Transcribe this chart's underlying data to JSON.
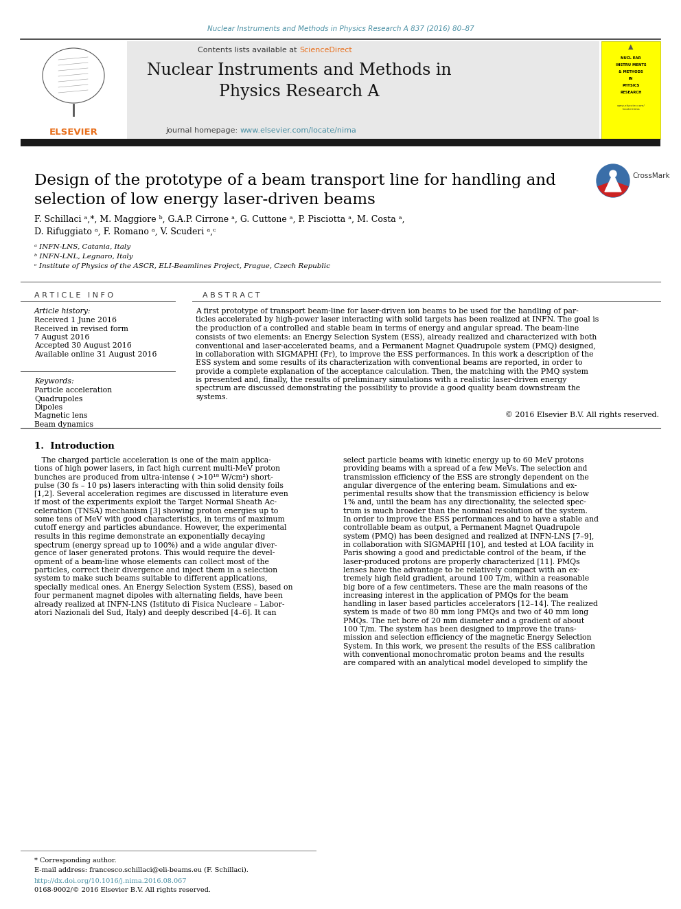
{
  "journal_ref": "Nuclear Instruments and Methods in Physics Research A 837 (2016) 80–87",
  "journal_ref_color": "#4a90a4",
  "header_bg": "#e8e8e8",
  "contents_text": "Contents lists available at ",
  "sciencedirect_text": "ScienceDirect",
  "sciencedirect_color": "#e86e1a",
  "journal_title": "Nuclear Instruments and Methods in\nPhysics Research A",
  "journal_homepage_text": "journal homepage: ",
  "journal_url": "www.elsevier.com/locate/nima",
  "journal_url_color": "#4a90a4",
  "thick_bar_color": "#1a1a1a",
  "paper_title": "Design of the prototype of a beam transport line for handling and\nselection of low energy laser-driven beams",
  "authors_line1": "F. Schillaci ᵃ,*, M. Maggiore ᵇ, G.A.P. Cirrone ᵃ, G. Cuttone ᵃ, P. Pisciotta ᵃ, M. Costa ᵃ,",
  "authors_line2": "D. Rifuggiato ᵃ, F. Romano ᵃ, V. Scuderi ᵃ,ᶜ",
  "affiliations": [
    "ᵃ INFN-LNS, Catania, Italy",
    "ᵇ INFN-LNL, Legnaro, Italy",
    "ᶜ Institute of Physics of the ASCR, ELI-Beamlines Project, Prague, Czech Republic"
  ],
  "article_info_title": "A R T I C L E   I N F O",
  "article_history_label": "Article history:",
  "article_history": [
    "Received 1 June 2016",
    "Received in revised form",
    "7 August 2016",
    "Accepted 30 August 2016",
    "Available online 31 August 2016"
  ],
  "keywords_label": "Keywords:",
  "keywords": [
    "Particle acceleration",
    "Quadrupoles",
    "Dipoles",
    "Magnetic lens",
    "Beam dynamics"
  ],
  "abstract_title": "A B S T R A C T",
  "abstract_lines": [
    "A first prototype of transport beam-line for laser-driven ion beams to be used for the handling of par-",
    "ticles accelerated by high-power laser interacting with solid targets has been realized at INFN. The goal is",
    "the production of a controlled and stable beam in terms of energy and angular spread. The beam-line",
    "consists of two elements: an Energy Selection System (ESS), already realized and characterized with both",
    "conventional and laser-accelerated beams, and a Permanent Magnet Quadrupole system (PMQ) designed,",
    "in collaboration with SIGMAPHI (Fr), to improve the ESS performances. In this work a description of the",
    "ESS system and some results of its characterization with conventional beams are reported, in order to",
    "provide a complete explanation of the acceptance calculation. Then, the matching with the PMQ system",
    "is presented and, finally, the results of preliminary simulations with a realistic laser-driven energy",
    "spectrum are discussed demonstrating the possibility to provide a good quality beam downstream the",
    "systems."
  ],
  "copyright_text": "© 2016 Elsevier B.V. All rights reserved.",
  "intro_title": "1.  Introduction",
  "intro_left_lines": [
    "   The charged particle acceleration is one of the main applica-",
    "tions of high power lasers, in fact high current multi-MeV proton",
    "bunches are produced from ultra-intense ( >10¹⁸ W/cm²) short-",
    "pulse (30 fs – 10 ps) lasers interacting with thin solid density foils",
    "[1,2]. Several acceleration regimes are discussed in literature even",
    "if most of the experiments exploit the Target Normal Sheath Ac-",
    "celeration (TNSA) mechanism [3] showing proton energies up to",
    "some tens of MeV with good characteristics, in terms of maximum",
    "cutoff energy and particles abundance. However, the experimental",
    "results in this regime demonstrate an exponentially decaying",
    "spectrum (energy spread up to 100%) and a wide angular diver-",
    "gence of laser generated protons. This would require the devel-",
    "opment of a beam-line whose elements can collect most of the",
    "particles, correct their divergence and inject them in a selection",
    "system to make such beams suitable to different applications,",
    "specially medical ones. An Energy Selection System (ESS), based on",
    "four permanent magnet dipoles with alternating fields, have been",
    "already realized at INFN-LNS (Istituto di Fisica Nucleare – Labor-",
    "atori Nazionali del Sud, Italy) and deeply described [4–6]. It can"
  ],
  "intro_right_lines": [
    "select particle beams with kinetic energy up to 60 MeV protons",
    "providing beams with a spread of a few MeVs. The selection and",
    "transmission efficiency of the ESS are strongly dependent on the",
    "angular divergence of the entering beam. Simulations and ex-",
    "perimental results show that the transmission efficiency is below",
    "1% and, until the beam has any directionality, the selected spec-",
    "trum is much broader than the nominal resolution of the system.",
    "In order to improve the ESS performances and to have a stable and",
    "controllable beam as output, a Permanent Magnet Quadrupole",
    "system (PMQ) has been designed and realized at INFN-LNS [7–9],",
    "in collaboration with SIGMAPHI [10], and tested at LOA facility in",
    "Paris showing a good and predictable control of the beam, if the",
    "laser-produced protons are properly characterized [11]. PMQs",
    "lenses have the advantage to be relatively compact with an ex-",
    "tremely high field gradient, around 100 T/m, within a reasonable",
    "big bore of a few centimeters. These are the main reasons of the",
    "increasing interest in the application of PMQs for the beam",
    "handling in laser based particles accelerators [12–14]. The realized",
    "system is made of two 80 mm long PMQs and two of 40 mm long",
    "PMQs. The net bore of 20 mm diameter and a gradient of about",
    "100 T/m. The system has been designed to improve the trans-",
    "mission and selection efficiency of the magnetic Energy Selection",
    "System. In this work, we present the results of the ESS calibration",
    "with conventional monochromatic proton beams and the results",
    "are compared with an analytical model developed to simplify the"
  ],
  "footer_text1": "* Corresponding author.",
  "footer_email": "E-mail address: francesco.schillaci@eli-beams.eu (F. Schillaci).",
  "footer_doi": "http://dx.doi.org/10.1016/j.nima.2016.08.067",
  "footer_issn": "0168-9002/© 2016 Elsevier B.V. All rights reserved.",
  "bg_color": "#ffffff",
  "text_color": "#000000",
  "link_color": "#4a90a4",
  "yellow_box_lines": [
    "NUCL EAR",
    "INSTRU MENTS",
    "& METHODS",
    "IN",
    "PHYSICS",
    "RESEARCH"
  ]
}
